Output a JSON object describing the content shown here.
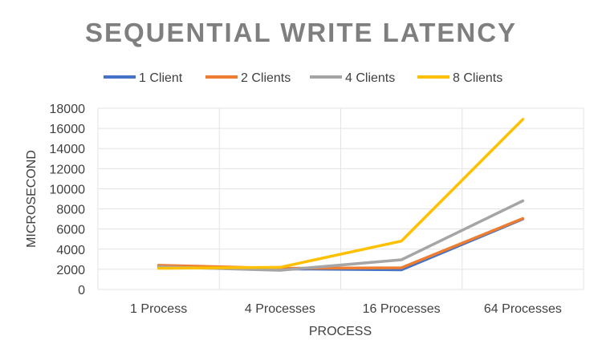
{
  "chart_data": {
    "type": "line",
    "title": "SEQUENTIAL WRITE LATENCY",
    "xlabel": "PROCESS",
    "ylabel": "MICROSECOND",
    "categories": [
      "1 Process",
      "4 Processes",
      "16 Processes",
      "64 Processes"
    ],
    "ylim": [
      0,
      18000
    ],
    "yticks": [
      0,
      2000,
      4000,
      6000,
      8000,
      10000,
      12000,
      14000,
      16000,
      18000
    ],
    "grid": true,
    "legend_position": "top",
    "series": [
      {
        "name": "1 Client",
        "color": "#4472c4",
        "values": [
          2300,
          2050,
          1950,
          7000
        ]
      },
      {
        "name": "2 Clients",
        "color": "#ed7d31",
        "values": [
          2400,
          2100,
          2150,
          7050
        ]
      },
      {
        "name": "4 Clients",
        "color": "#a5a5a5",
        "values": [
          2250,
          1900,
          2950,
          8800
        ]
      },
      {
        "name": "8 Clients",
        "color": "#ffc000",
        "values": [
          2100,
          2200,
          4800,
          16900
        ]
      }
    ]
  }
}
